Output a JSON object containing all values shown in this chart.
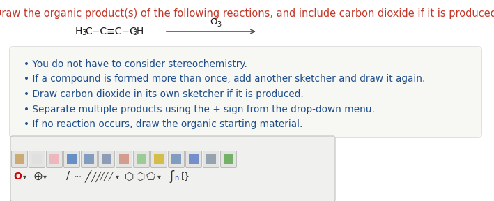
{
  "title_text": "Draw the organic product(s) of the following reactions, and include carbon dioxide if it is produced.",
  "title_color": "#c0392b",
  "title_fontsize": 10.5,
  "reagent_label_parts": [
    "H",
    "3",
    "C−C≡C−CH",
    "3"
  ],
  "reagent_color": "#1a1a1a",
  "reagent_fontsize": 10,
  "arrow_reagent": "O3",
  "arrow_reagent_color": "#1a1a1a",
  "arrow_reagent_fontsize": 9.5,
  "bullet_points": [
    "You do not have to consider stereochemistry.",
    "If a compound is formed more than once, add another sketcher and draw it again.",
    "Draw carbon dioxide in its own sketcher if it is produced.",
    "Separate multiple products using the + sign from the drop-down menu.",
    "If no reaction occurs, draw the organic starting material."
  ],
  "bullet_color": "#1f4e8c",
  "bullet_fontsize": 9.8,
  "box_facecolor": "#f7f7f4",
  "box_edgecolor": "#c8c8c8",
  "background_color": "#ffffff",
  "toolbar_bg": "#f0f0ee",
  "toolbar_border": "#c0c0c0",
  "fig_width": 7.09,
  "fig_height": 2.88,
  "dpi": 100
}
